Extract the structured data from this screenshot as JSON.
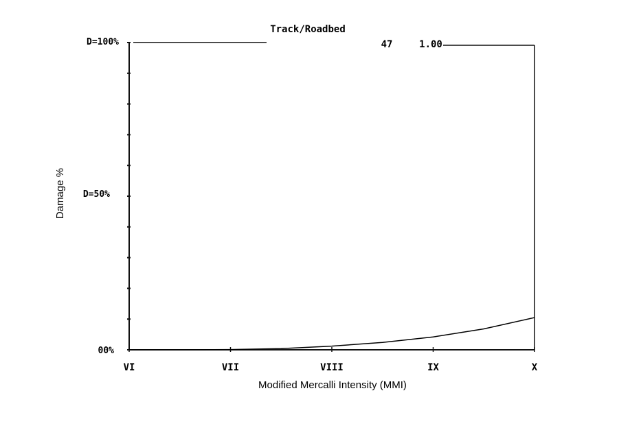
{
  "chart_data": {
    "type": "line",
    "title": "Track/Roadbed",
    "facility_class": "47",
    "factor": "1.00",
    "xlabel": "Modified Mercalli Intensity (MMI)",
    "ylabel": "Damage %",
    "x_ticks": [
      "VI",
      "VII",
      "VIII",
      "IX",
      "X"
    ],
    "y_tick_labels": [
      "00%",
      "D=50%",
      "D=100%"
    ],
    "ylim": [
      0,
      100
    ],
    "xlim": [
      6,
      10
    ],
    "series": [
      {
        "x": [
          6.0,
          6.5,
          7.0,
          7.5,
          8.0,
          8.5,
          9.0,
          9.5,
          10.0
        ],
        "y": [
          0.0,
          0.0,
          0.1,
          0.4,
          1.2,
          2.4,
          4.2,
          6.8,
          10.5
        ]
      }
    ],
    "colors": {
      "line": "#000000",
      "frame": "#111111"
    }
  }
}
